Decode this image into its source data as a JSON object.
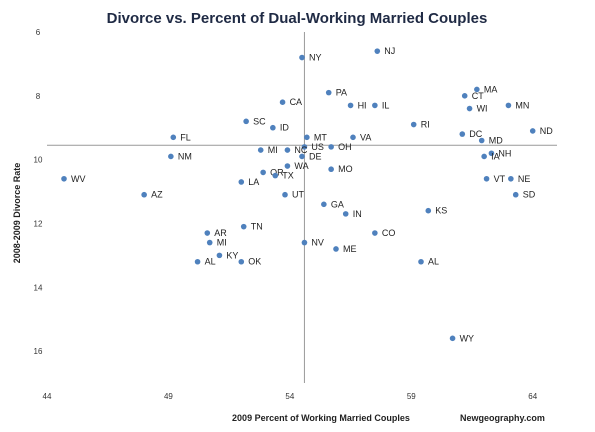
{
  "chart_data": {
    "type": "scatter",
    "title": "Divorce vs. Percent of Dual-Working Married Couples",
    "xlabel": "2009 Percent of Working Married Couples",
    "ylabel": "2008-2009 Divorce Rate",
    "source": "Newgeography.com",
    "xlim": [
      44,
      65
    ],
    "ylim": [
      6,
      17
    ],
    "y_reversed": true,
    "x_ticks": [
      "44",
      "49",
      "54",
      "59",
      "64"
    ],
    "y_ticks": [
      "6",
      "8",
      "10",
      "12",
      "14",
      "16"
    ],
    "x_reference": 54.6,
    "y_reference": 9.55,
    "grid": false,
    "legend": "none",
    "marker_color": "#4f81bd",
    "points": [
      {
        "label": "NJ",
        "x": 57.6,
        "y": 6.6
      },
      {
        "label": "NY",
        "x": 54.5,
        "y": 6.8
      },
      {
        "label": "MA",
        "x": 61.7,
        "y": 7.8
      },
      {
        "label": "CT",
        "x": 61.2,
        "y": 8.0
      },
      {
        "label": "PA",
        "x": 55.6,
        "y": 7.9
      },
      {
        "label": "HI",
        "x": 56.5,
        "y": 8.3
      },
      {
        "label": "IL",
        "x": 57.5,
        "y": 8.3
      },
      {
        "label": "WI",
        "x": 61.4,
        "y": 8.4
      },
      {
        "label": "MN",
        "x": 63.0,
        "y": 8.3
      },
      {
        "label": "CA",
        "x": 53.7,
        "y": 8.2
      },
      {
        "label": "RI",
        "x": 59.1,
        "y": 8.9
      },
      {
        "label": "SC",
        "x": 52.2,
        "y": 8.8
      },
      {
        "label": "ID",
        "x": 53.3,
        "y": 9.0
      },
      {
        "label": "DC",
        "x": 61.1,
        "y": 9.2
      },
      {
        "label": "ND",
        "x": 64.0,
        "y": 9.1
      },
      {
        "label": "MD",
        "x": 61.9,
        "y": 9.4
      },
      {
        "label": "FL",
        "x": 49.2,
        "y": 9.3
      },
      {
        "label": "MT",
        "x": 54.7,
        "y": 9.3
      },
      {
        "label": "VA",
        "x": 56.6,
        "y": 9.3
      },
      {
        "label": "US",
        "x": 54.6,
        "y": 9.6
      },
      {
        "label": "OH",
        "x": 55.7,
        "y": 9.6
      },
      {
        "label": "MI",
        "x": 52.8,
        "y": 9.7
      },
      {
        "label": "NC",
        "x": 53.9,
        "y": 9.7
      },
      {
        "label": "NH",
        "x": 62.3,
        "y": 9.8
      },
      {
        "label": "IA",
        "x": 62.0,
        "y": 9.9
      },
      {
        "label": "NM",
        "x": 49.1,
        "y": 9.9
      },
      {
        "label": "DE",
        "x": 54.5,
        "y": 9.9
      },
      {
        "label": "OR",
        "x": 52.9,
        "y": 10.4
      },
      {
        "label": "WA",
        "x": 53.9,
        "y": 10.2
      },
      {
        "label": "MO",
        "x": 55.7,
        "y": 10.3
      },
      {
        "label": "TX",
        "x": 53.4,
        "y": 10.5
      },
      {
        "label": "VT",
        "x": 62.1,
        "y": 10.6
      },
      {
        "label": "NE",
        "x": 63.1,
        "y": 10.6
      },
      {
        "label": "WV",
        "x": 44.7,
        "y": 10.6
      },
      {
        "label": "LA",
        "x": 52.0,
        "y": 10.7
      },
      {
        "label": "AZ",
        "x": 48.0,
        "y": 11.1
      },
      {
        "label": "SD",
        "x": 63.3,
        "y": 11.1
      },
      {
        "label": "UT",
        "x": 53.8,
        "y": 11.1
      },
      {
        "label": "GA",
        "x": 55.4,
        "y": 11.4
      },
      {
        "label": "IN",
        "x": 56.3,
        "y": 11.7
      },
      {
        "label": "KS",
        "x": 59.7,
        "y": 11.6
      },
      {
        "label": "TN",
        "x": 52.1,
        "y": 12.1
      },
      {
        "label": "CO",
        "x": 57.5,
        "y": 12.3
      },
      {
        "label": "AR",
        "x": 50.6,
        "y": 12.3
      },
      {
        "label": "MI",
        "x": 50.7,
        "y": 12.6
      },
      {
        "label": "NV",
        "x": 54.6,
        "y": 12.6
      },
      {
        "label": "ME",
        "x": 55.9,
        "y": 12.8
      },
      {
        "label": "KY",
        "x": 51.1,
        "y": 13.0
      },
      {
        "label": "AL",
        "x": 50.2,
        "y": 13.2
      },
      {
        "label": "OK",
        "x": 52.0,
        "y": 13.2
      },
      {
        "label": "AL",
        "x": 59.4,
        "y": 13.2
      },
      {
        "label": "WY",
        "x": 60.7,
        "y": 15.6
      }
    ]
  }
}
